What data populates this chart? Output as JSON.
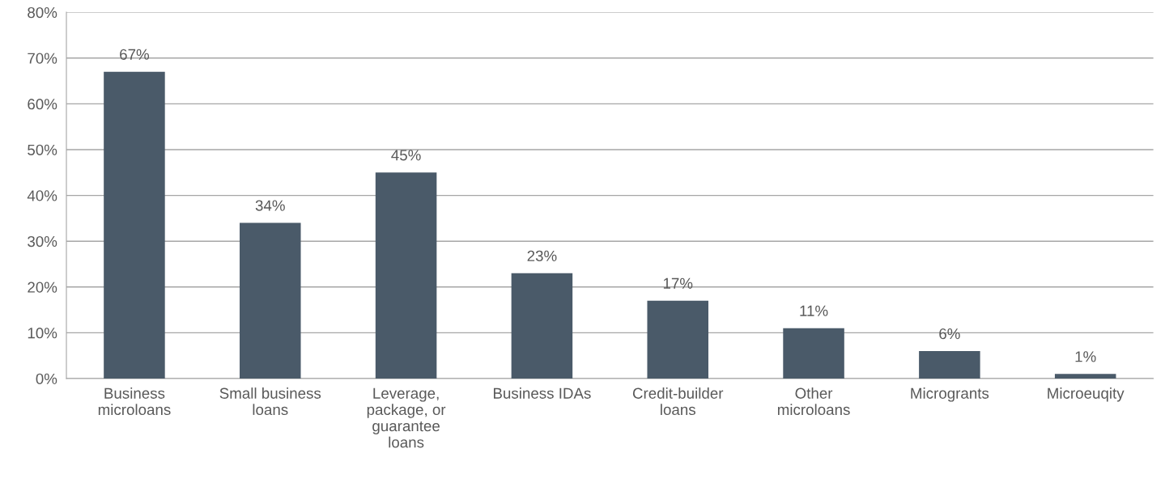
{
  "chart_data": {
    "type": "bar",
    "categories": [
      "Business\nmicroloans",
      "Small business\nloans",
      "Leverage,\npackage, or\nguarantee\nloans",
      "Business IDAs",
      "Credit-builder\nloans",
      "Other\nmicroloans",
      "Microgrants",
      "Microeuqity"
    ],
    "values": [
      67,
      34,
      45,
      23,
      17,
      11,
      6,
      1
    ],
    "value_labels": [
      "67%",
      "34%",
      "45%",
      "23%",
      "17%",
      "11%",
      "6%",
      "1%"
    ],
    "color": "#4a5a69",
    "ylim": [
      0,
      80
    ],
    "yticks": [
      {
        "value": 0,
        "label": "0%"
      },
      {
        "value": 10,
        "label": "10%"
      },
      {
        "value": 20,
        "label": "20%"
      },
      {
        "value": 30,
        "label": "30%"
      },
      {
        "value": 40,
        "label": "40%"
      },
      {
        "value": 50,
        "label": "50%"
      },
      {
        "value": 60,
        "label": "60%"
      },
      {
        "value": 70,
        "label": "70%"
      },
      {
        "value": 80,
        "label": "80%"
      }
    ],
    "grid": "y"
  }
}
